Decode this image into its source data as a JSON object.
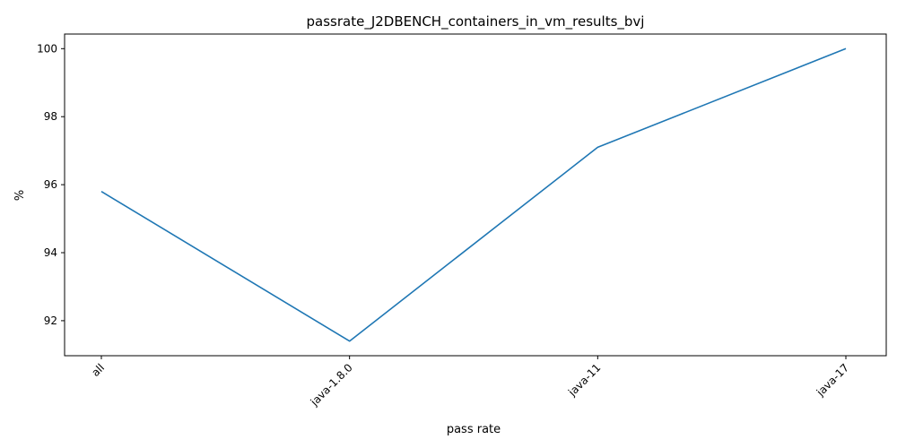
{
  "chart_data": {
    "type": "line",
    "title": "passrate_J2DBENCH_containers_in_vm_results_bvj",
    "xlabel": "pass rate",
    "ylabel": "%",
    "categories": [
      "all",
      "java-1.8.0",
      "java-11",
      "java-17"
    ],
    "series": [
      {
        "values": [
          95.8,
          91.4,
          97.1,
          100.0
        ]
      }
    ],
    "yticks": [
      92,
      94,
      96,
      98,
      100
    ],
    "ylim": [
      90.97,
      100.43
    ],
    "grid": false,
    "legend": "none"
  },
  "colors": {
    "line": "#1f77b4",
    "axis": "#000000"
  }
}
